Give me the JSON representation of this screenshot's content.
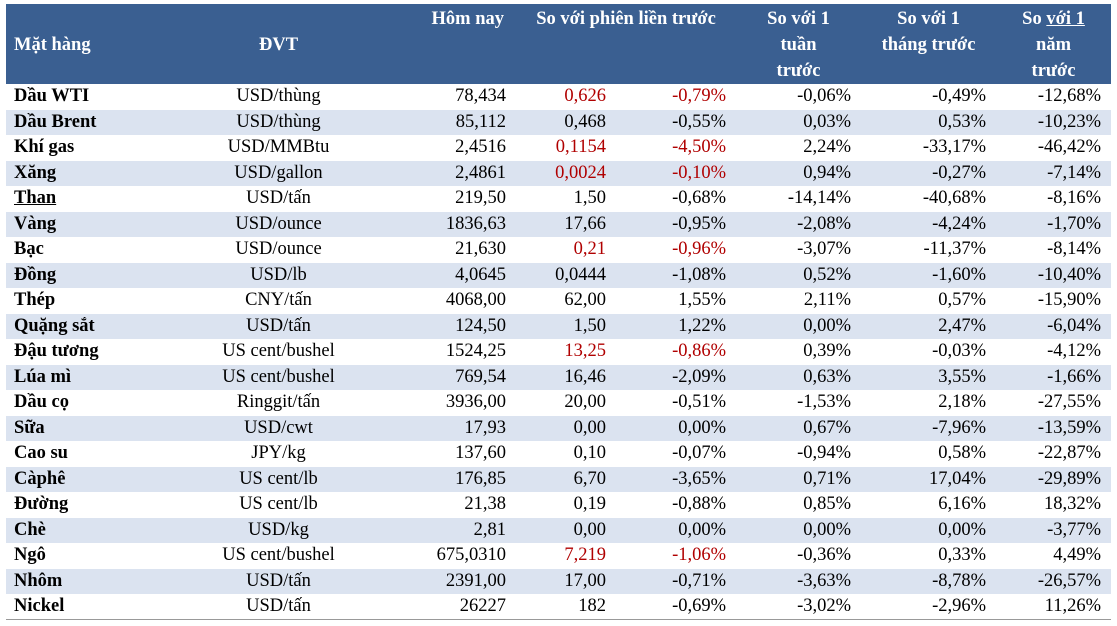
{
  "headers": {
    "item": "Mặt hàng",
    "unit": "ĐVT",
    "today": "Hôm nay",
    "prev_session": "So với phiên liền trước",
    "week_l1": "So với 1",
    "week_l2": "tuần",
    "week_l3": "trước",
    "month_l1": "So với 1",
    "month_l2": "tháng trước",
    "year_l1a": "So ",
    "year_l1b": "với 1",
    "year_l2": "năm",
    "year_l3": "trước"
  },
  "rows": [
    {
      "name": "Dầu WTI",
      "unit": "USD/thùng",
      "today": "78,434",
      "chg": "0,626",
      "pct": "-0,79%",
      "week": "-0,06%",
      "month": "-0,49%",
      "year": "-12,68%",
      "red": true
    },
    {
      "name": "Dầu Brent",
      "unit": "USD/thùng",
      "today": "85,112",
      "chg": "0,468",
      "pct": "-0,55%",
      "week": "0,03%",
      "month": "0,53%",
      "year": "-10,23%",
      "red": false
    },
    {
      "name": "Khí gas",
      "unit": "USD/MMBtu",
      "today": "2,4516",
      "chg": "0,1154",
      "pct": "-4,50%",
      "week": "2,24%",
      "month": "-33,17%",
      "year": "-46,42%",
      "red": true
    },
    {
      "name": "Xăng",
      "unit": "USD/gallon",
      "today": "2,4861",
      "chg": "0,0024",
      "pct": "-0,10%",
      "week": "0,94%",
      "month": "-0,27%",
      "year": "-7,14%",
      "red": true
    },
    {
      "name": "Than",
      "unit": "USD/tấn",
      "today": "219,50",
      "chg": "1,50",
      "pct": "-0,68%",
      "week": "-14,14%",
      "month": "-40,68%",
      "year": "-8,16%",
      "red": false,
      "underline": true
    },
    {
      "name": "Vàng",
      "unit": "USD/ounce",
      "today": "1836,63",
      "chg": "17,66",
      "pct": "-0,95%",
      "week": "-2,08%",
      "month": "-4,24%",
      "year": "-1,70%",
      "red": false
    },
    {
      "name": "Bạc",
      "unit": "USD/ounce",
      "today": "21,630",
      "chg": "0,21",
      "pct": "-0,96%",
      "week": "-3,07%",
      "month": "-11,37%",
      "year": "-8,14%",
      "red": true
    },
    {
      "name": "Đồng",
      "unit": "USD/lb",
      "today": "4,0645",
      "chg": "0,0444",
      "pct": "-1,08%",
      "week": "0,52%",
      "month": "-1,60%",
      "year": "-10,40%",
      "red": false
    },
    {
      "name": "Thép",
      "unit": "CNY/tấn",
      "today": "4068,00",
      "chg": "62,00",
      "pct": "1,55%",
      "week": "2,11%",
      "month": "0,57%",
      "year": "-15,90%",
      "red": false
    },
    {
      "name": "Quặng sắt",
      "unit": "USD/tấn",
      "today": "124,50",
      "chg": "1,50",
      "pct": "1,22%",
      "week": "0,00%",
      "month": "2,47%",
      "year": "-6,04%",
      "red": false
    },
    {
      "name": "Đậu tương",
      "unit": "US cent/bushel",
      "today": "1524,25",
      "chg": "13,25",
      "pct": "-0,86%",
      "week": "0,39%",
      "month": "-0,03%",
      "year": "-4,12%",
      "red": true
    },
    {
      "name": "Lúa mì",
      "unit": "US cent/bushel",
      "today": "769,54",
      "chg": "16,46",
      "pct": "-2,09%",
      "week": "0,63%",
      "month": "3,55%",
      "year": "-1,66%",
      "red": false
    },
    {
      "name": "Dầu cọ",
      "unit": "Ringgit/tấn",
      "today": "3936,00",
      "chg": "20,00",
      "pct": "-0,51%",
      "week": "-1,53%",
      "month": "2,18%",
      "year": "-27,55%",
      "red": false
    },
    {
      "name": "Sữa",
      "unit": "USD/cwt",
      "today": "17,93",
      "chg": "0,00",
      "pct": "0,00%",
      "week": "0,67%",
      "month": "-7,96%",
      "year": "-13,59%",
      "red": false
    },
    {
      "name": "Cao su",
      "unit": "JPY/kg",
      "today": "137,60",
      "chg": "0,10",
      "pct": "-0,07%",
      "week": "-0,94%",
      "month": "0,58%",
      "year": "-22,87%",
      "red": false
    },
    {
      "name": "Càphê",
      "unit": "US cent/lb",
      "today": "176,85",
      "chg": "6,70",
      "pct": "-3,65%",
      "week": "0,71%",
      "month": "17,04%",
      "year": "-29,89%",
      "red": false
    },
    {
      "name": "Đường",
      "unit": "US cent/lb",
      "today": "21,38",
      "chg": "0,19",
      "pct": "-0,88%",
      "week": "0,85%",
      "month": "6,16%",
      "year": "18,32%",
      "red": false
    },
    {
      "name": "Chè",
      "unit": "USD/kg",
      "today": "2,81",
      "chg": "0,00",
      "pct": "0,00%",
      "week": "0,00%",
      "month": "0,00%",
      "year": "-3,77%",
      "red": false
    },
    {
      "name": "Ngô",
      "unit": "US cent/bushel",
      "today": "675,0310",
      "chg": "7,219",
      "pct": "-1,06%",
      "week": "-0,36%",
      "month": "0,33%",
      "year": "4,49%",
      "red": true
    },
    {
      "name": "Nhôm",
      "unit": "USD/tấn",
      "today": "2391,00",
      "chg": "17,00",
      "pct": "-0,71%",
      "week": "-3,63%",
      "month": "-8,78%",
      "year": "-26,57%",
      "red": false
    },
    {
      "name": "Nickel",
      "unit": "USD/tấn",
      "today": "26227",
      "chg": "182",
      "pct": "-0,69%",
      "week": "-3,02%",
      "month": "-2,96%",
      "year": "11,26%",
      "red": false
    }
  ]
}
